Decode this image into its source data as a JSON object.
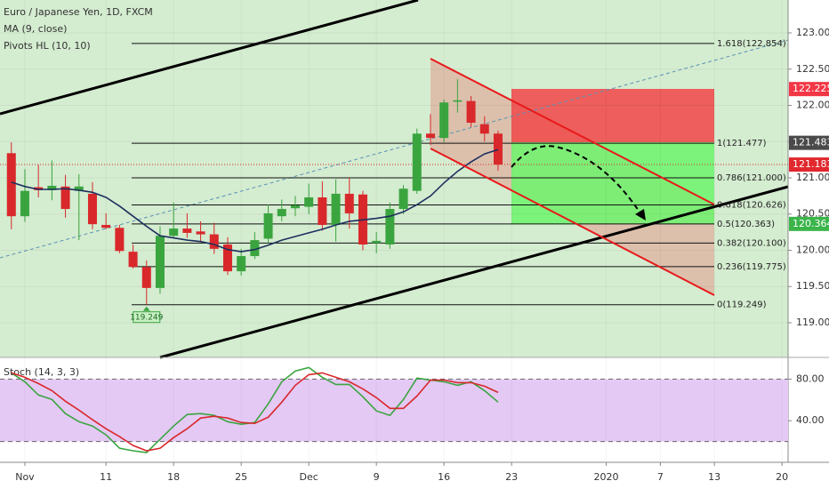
{
  "chart_data": [
    {
      "type": "candlestick",
      "title": "Euro / Japanese Yen, 1D, FXCM",
      "pivot_label": "Pivots HL (10, 10)",
      "xlim": [
        -0.84,
        57.45
      ],
      "ylim": [
        118.546,
        123.454
      ],
      "yticks": [
        {
          "value": 123,
          "label": "123.000"
        },
        {
          "value": 122.5,
          "label": "122.500"
        },
        {
          "value": 122,
          "label": "122.000"
        },
        {
          "value": 121.5,
          "label": "121.500"
        },
        {
          "value": 121,
          "label": "121.000"
        },
        {
          "value": 120.5,
          "label": "120.500"
        },
        {
          "value": 120,
          "label": "120.000"
        },
        {
          "value": 119.5,
          "label": "119.500"
        },
        {
          "value": 119,
          "label": "119.000"
        }
      ],
      "up_color": "#3aa53f",
      "down_color": "#d9282b",
      "open": [
        121.34,
        120.47,
        120.87,
        120.83,
        120.88,
        120.82,
        120.78,
        120.35,
        120.31,
        119.98,
        119.77,
        119.48,
        120.2,
        120.3,
        120.26,
        120.22,
        120.08,
        119.71,
        119.92,
        120.16,
        120.47,
        120.58,
        120.6,
        120.73,
        120.35,
        120.78,
        120.77,
        120.1,
        120.08,
        120.57,
        120.82,
        121.61,
        121.55,
        122.05,
        122.06,
        121.74,
        121.61
      ],
      "high": [
        121.49,
        121.12,
        121.18,
        121.24,
        121.04,
        121.05,
        120.94,
        120.51,
        120.35,
        120.08,
        119.86,
        120.33,
        120.66,
        120.51,
        120.4,
        120.38,
        120.18,
        120.02,
        120.25,
        120.63,
        120.7,
        120.75,
        120.92,
        120.95,
        120.98,
        121.0,
        120.82,
        120.25,
        120.66,
        120.9,
        121.68,
        121.88,
        122.08,
        122.36,
        122.13,
        121.85,
        121.65
      ],
      "low": [
        120.29,
        120.39,
        120.73,
        120.69,
        120.45,
        120.14,
        120.29,
        120.29,
        119.96,
        119.75,
        119.249,
        119.4,
        120.17,
        120.17,
        120.12,
        119.95,
        119.66,
        119.65,
        119.88,
        120.1,
        120.4,
        120.47,
        120.5,
        120.27,
        120.12,
        120.3,
        120.0,
        119.96,
        120.02,
        120.5,
        120.78,
        121.45,
        121.49,
        121.9,
        121.7,
        121.5,
        121.1
      ],
      "close": [
        120.47,
        120.82,
        120.83,
        120.89,
        120.57,
        120.88,
        120.36,
        120.31,
        119.99,
        119.77,
        119.48,
        120.2,
        120.3,
        120.24,
        120.22,
        120.02,
        119.71,
        119.92,
        120.14,
        120.51,
        120.57,
        120.62,
        120.73,
        120.35,
        120.78,
        120.51,
        120.08,
        120.13,
        120.57,
        120.85,
        121.61,
        121.55,
        122.04,
        122.07,
        121.76,
        121.61,
        121.183
      ],
      "series": [
        {
          "name": "MA (9, close)",
          "color": "#1d2f5e",
          "values": [
            120.94,
            120.88,
            120.84,
            120.84,
            120.85,
            120.83,
            120.8,
            120.73,
            120.61,
            120.47,
            120.33,
            120.2,
            120.17,
            120.14,
            120.12,
            120.08,
            120.01,
            119.98,
            120.01,
            120.07,
            120.14,
            120.19,
            120.24,
            120.29,
            120.35,
            120.4,
            120.42,
            120.44,
            120.47,
            120.53,
            120.63,
            120.75,
            120.93,
            121.09,
            121.22,
            121.33,
            121.39
          ]
        }
      ],
      "fib_levels": [
        {
          "value": 122.854,
          "label": "1.618(122.854)"
        },
        {
          "value": 121.477,
          "label": "1(121.477)"
        },
        {
          "value": 121.0,
          "label": "0.786(121.000)"
        },
        {
          "value": 120.626,
          "label": "0.618(120.626)"
        },
        {
          "value": 120.363,
          "label": "0.5(120.363)"
        },
        {
          "value": 120.1,
          "label": "0.382(120.100)"
        },
        {
          "value": 119.775,
          "label": "0.236(119.775)"
        },
        {
          "value": 119.249,
          "label": "0(119.249)"
        }
      ],
      "price_labels": [
        {
          "value": 122.225,
          "label": "122.225",
          "color": "#f23645"
        },
        {
          "value": 121.483,
          "label": "121.483",
          "color": "#4a4a4a"
        },
        {
          "value": 121.183,
          "label": "121.183",
          "color": "#e0282e"
        },
        {
          "value": 120.364,
          "label": "120.364",
          "color": "#3bb54a"
        }
      ],
      "low_label": {
        "value": 119.249,
        "label": "119.249"
      }
    },
    {
      "type": "line",
      "title": "Stoch (14, 3, 3)",
      "xlim": [
        -0.84,
        57.45
      ],
      "xticks": [
        {
          "value": 1,
          "label": "Nov"
        },
        {
          "value": 7,
          "label": "11"
        },
        {
          "value": 12,
          "label": "18"
        },
        {
          "value": 17,
          "label": "25"
        },
        {
          "value": 22,
          "label": "Dec"
        },
        {
          "value": 27,
          "label": "9"
        },
        {
          "value": 32,
          "label": "16"
        },
        {
          "value": 37,
          "label": "23"
        },
        {
          "value": 44,
          "label": "2020"
        },
        {
          "value": 48,
          "label": "7"
        },
        {
          "value": 52,
          "label": "13"
        },
        {
          "value": 57,
          "label": "20"
        }
      ],
      "ylim": [
        0,
        100
      ],
      "yticks": [
        {
          "value": 80,
          "label": "80.00"
        },
        {
          "value": 40,
          "label": "40.00"
        }
      ],
      "bands": [
        80,
        20
      ],
      "band_color": "#e4c9f5",
      "series": [
        {
          "color": "#3aa53f",
          "values": [
            86.0,
            77.4,
            64.7,
            60.4,
            46.8,
            39.1,
            34.9,
            26.4,
            13.6,
            11.1,
            9.4,
            22.1,
            34.9,
            46.0,
            46.8,
            45.1,
            39.1,
            36.6,
            38.3,
            56.2,
            77.4,
            87.7,
            91.1,
            81.7,
            74.9,
            74.9,
            63.0,
            49.4,
            45.1,
            60.4,
            80.9,
            79.1,
            77.4,
            74.0,
            77.4,
            68.9,
            57.9
          ]
        },
        {
          "color": "#d9282b",
          "values": [
            86.0,
            81.7,
            75.7,
            68.9,
            58.7,
            50.2,
            40.9,
            32.3,
            24.7,
            16.2,
            11.1,
            13.6,
            23.8,
            32.3,
            42.6,
            44.3,
            42.6,
            38.3,
            37.4,
            43.4,
            57.9,
            74.0,
            84.3,
            86.0,
            81.7,
            77.4,
            70.6,
            62.1,
            51.9,
            51.9,
            63.8,
            79.1,
            79.1,
            76.6,
            76.6,
            73.2,
            67.2
          ]
        }
      ]
    }
  ]
}
